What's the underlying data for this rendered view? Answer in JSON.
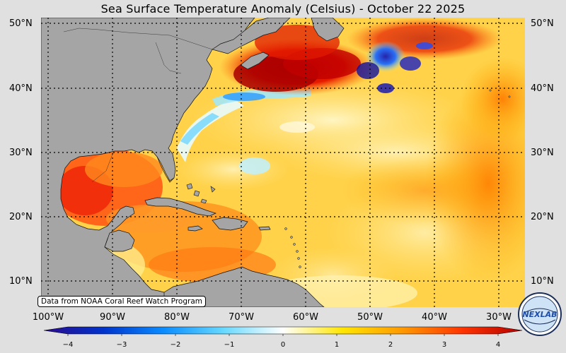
{
  "title": "Sea Surface Temperature Anomaly (Celsius) - October 22 2025",
  "credit": "Data from NOAA Coral Reef Watch Program",
  "lat_labels": [
    "50°N",
    "40°N",
    "30°N",
    "20°N",
    "10°N"
  ],
  "lon_labels": [
    "100°W",
    "90°W",
    "80°W",
    "70°W",
    "60°W",
    "50°W",
    "40°W",
    "30°W"
  ],
  "colorbar": {
    "ticks": [
      "−4",
      "−3",
      "−2",
      "−1",
      "0",
      "1",
      "2",
      "3",
      "4"
    ],
    "min": -4,
    "max": 4,
    "colors": [
      "#2b0a8c",
      "#0033cc",
      "#0a8cff",
      "#66d9ff",
      "#ffffff",
      "#ffe600",
      "#ff9900",
      "#ff3300",
      "#b30000"
    ]
  },
  "colors": {
    "land": "#a5a5a5",
    "ocean_base": "#ffd24a",
    "background": "#e0e0e0"
  },
  "logo": {
    "text": "NEXLAB"
  }
}
